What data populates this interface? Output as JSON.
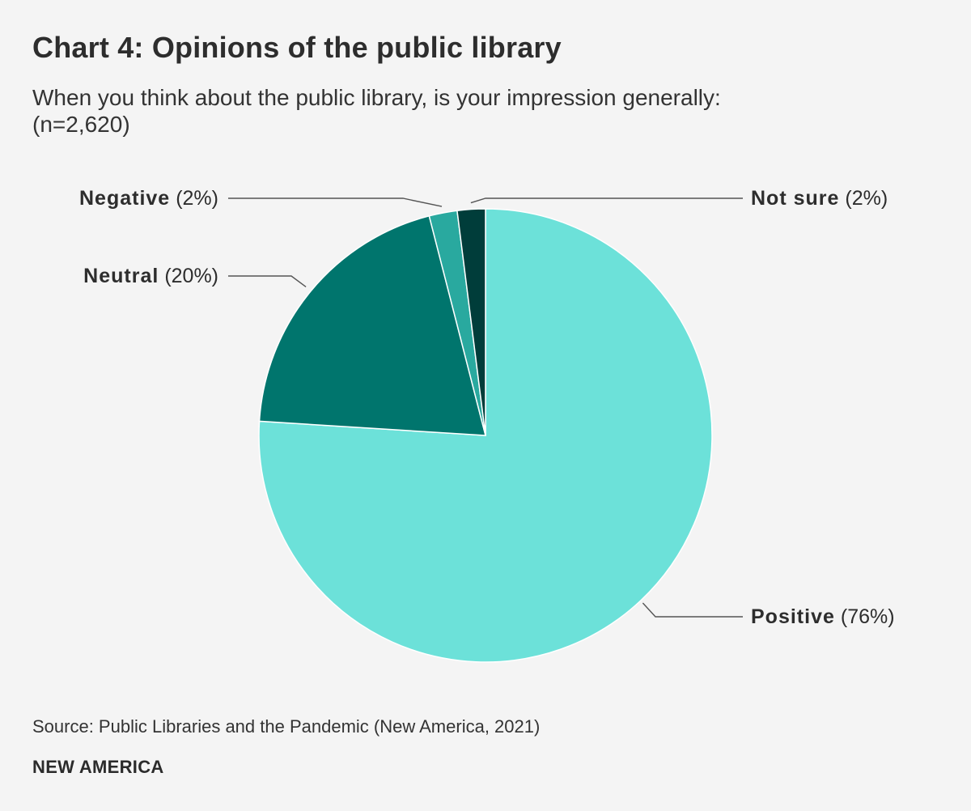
{
  "chart_data": {
    "type": "pie",
    "title": "Chart 4: Opinions of the public library",
    "subtitle_lines": [
      "When you think about the public library, is your impression generally:",
      "(n=2,620)"
    ],
    "start_angle_deg": 0,
    "direction": "clockwise",
    "slices": [
      {
        "name": "Positive",
        "label": "Positive",
        "pct_text": "(76%)",
        "value": 76,
        "color": "#6ce1d9",
        "label_side": "right"
      },
      {
        "name": "Neutral",
        "label": "Neutral",
        "pct_text": "(20%)",
        "value": 20,
        "color": "#00756d",
        "label_side": "left"
      },
      {
        "name": "Negative",
        "label": "Negative",
        "pct_text": "(2%)",
        "value": 2,
        "color": "#29a99f",
        "label_side": "left"
      },
      {
        "name": "Not sure",
        "label": "Not sure",
        "pct_text": "(2%)",
        "value": 2,
        "color": "#003d3a",
        "label_side": "right"
      }
    ]
  },
  "footer": {
    "source": "Source: Public Libraries and the Pandemic (New America, 2021)",
    "brand": "NEW AMERICA"
  },
  "colors": {
    "background": "#f4f4f4",
    "text": "#2d2d2d",
    "leader_line": "#555555"
  }
}
